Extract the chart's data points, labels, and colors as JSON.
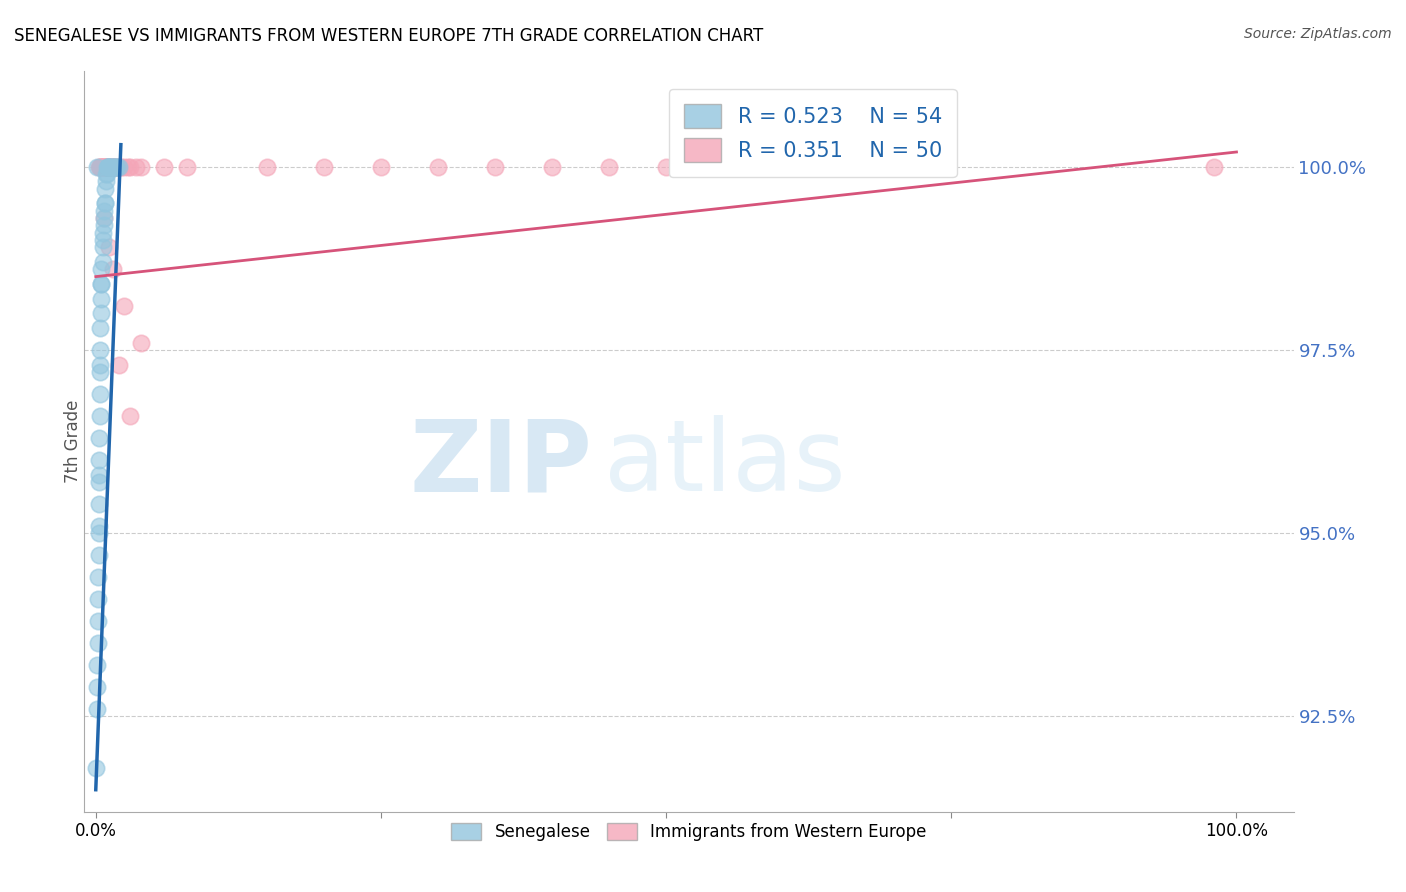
{
  "title": "SENEGALESE VS IMMIGRANTS FROM WESTERN EUROPE 7TH GRADE CORRELATION CHART",
  "source": "Source: ZipAtlas.com",
  "ylabel": "7th Grade",
  "watermark_zip": "ZIP",
  "watermark_atlas": "atlas",
  "blue_R": 0.523,
  "blue_N": 54,
  "pink_R": 0.351,
  "pink_N": 50,
  "blue_color": "#92c5de",
  "pink_color": "#f4a6b8",
  "blue_line_color": "#2166ac",
  "pink_line_color": "#d6537a",
  "legend_label_blue": "Senegalese",
  "legend_label_pink": "Immigrants from Western Europe",
  "yticks": [
    92.5,
    95.0,
    97.5,
    100.0
  ],
  "ylim": [
    91.2,
    101.3
  ],
  "xlim": [
    -0.01,
    1.05
  ],
  "blue_x": [
    0.0005,
    0.001,
    0.001,
    0.0015,
    0.002,
    0.002,
    0.002,
    0.002,
    0.003,
    0.003,
    0.003,
    0.003,
    0.003,
    0.003,
    0.003,
    0.003,
    0.004,
    0.004,
    0.004,
    0.004,
    0.004,
    0.004,
    0.005,
    0.005,
    0.005,
    0.005,
    0.005,
    0.006,
    0.006,
    0.006,
    0.006,
    0.007,
    0.007,
    0.007,
    0.008,
    0.008,
    0.008,
    0.009,
    0.009,
    0.01,
    0.01,
    0.011,
    0.011,
    0.012,
    0.012,
    0.013,
    0.014,
    0.015,
    0.016,
    0.017,
    0.018,
    0.019,
    0.02,
    0.001
  ],
  "blue_y": [
    91.8,
    92.6,
    92.9,
    93.2,
    93.5,
    93.8,
    94.1,
    94.4,
    94.7,
    95.0,
    95.1,
    95.4,
    95.7,
    95.8,
    96.0,
    96.3,
    96.6,
    96.9,
    97.2,
    97.3,
    97.5,
    97.8,
    98.0,
    98.2,
    98.4,
    98.4,
    98.6,
    98.7,
    98.9,
    99.0,
    99.1,
    99.2,
    99.3,
    99.4,
    99.5,
    99.5,
    99.7,
    99.8,
    99.9,
    99.9,
    100.0,
    100.0,
    100.0,
    100.0,
    100.0,
    100.0,
    100.0,
    100.0,
    100.0,
    100.0,
    100.0,
    100.0,
    100.0,
    100.0
  ],
  "pink_x": [
    0.003,
    0.004,
    0.004,
    0.005,
    0.005,
    0.006,
    0.006,
    0.007,
    0.007,
    0.008,
    0.009,
    0.01,
    0.01,
    0.011,
    0.012,
    0.013,
    0.013,
    0.014,
    0.015,
    0.016,
    0.017,
    0.018,
    0.02,
    0.022,
    0.025,
    0.028,
    0.03,
    0.035,
    0.04,
    0.06,
    0.08,
    0.15,
    0.2,
    0.25,
    0.3,
    0.35,
    0.4,
    0.45,
    0.5,
    0.55,
    0.6,
    0.65,
    0.98,
    0.007,
    0.015,
    0.025,
    0.04,
    0.012,
    0.02,
    0.03
  ],
  "pink_y": [
    100.0,
    100.0,
    100.0,
    100.0,
    100.0,
    100.0,
    100.0,
    100.0,
    100.0,
    100.0,
    100.0,
    100.0,
    100.0,
    100.0,
    100.0,
    100.0,
    100.0,
    100.0,
    100.0,
    100.0,
    100.0,
    100.0,
    100.0,
    100.0,
    100.0,
    100.0,
    100.0,
    100.0,
    100.0,
    100.0,
    100.0,
    100.0,
    100.0,
    100.0,
    100.0,
    100.0,
    100.0,
    100.0,
    100.0,
    100.0,
    100.0,
    100.0,
    100.0,
    99.3,
    98.6,
    98.1,
    97.6,
    98.9,
    97.3,
    96.6
  ],
  "blue_line_x0": 0.0,
  "blue_line_x1": 0.022,
  "blue_line_y0": 91.5,
  "blue_line_y1": 100.3,
  "pink_line_x0": 0.0,
  "pink_line_x1": 1.0,
  "pink_line_y0": 98.5,
  "pink_line_y1": 100.2
}
